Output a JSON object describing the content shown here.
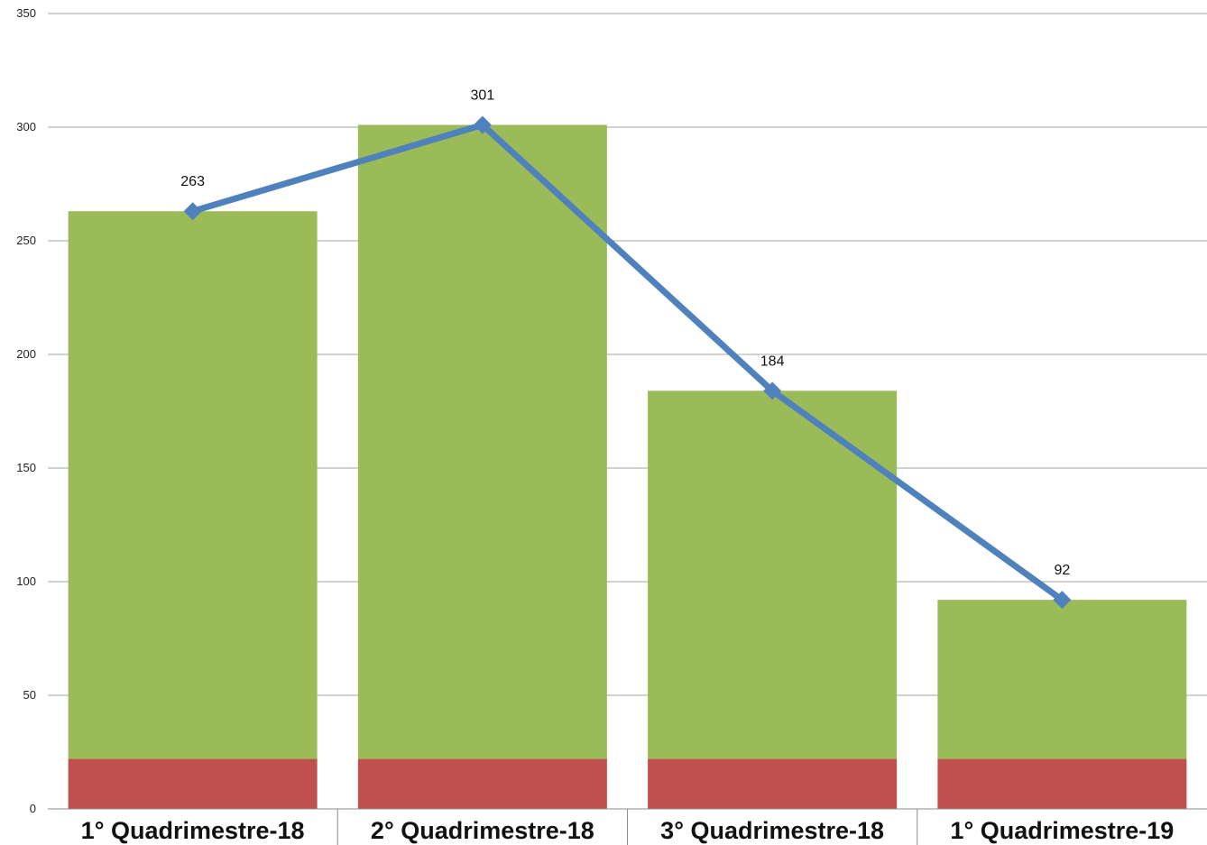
{
  "chart_data": {
    "type": "bar",
    "categories": [
      "1° Quadrimestre-18",
      "2° Quadrimestre-18",
      "3° Quadrimestre-18",
      "1° Quadrimestre-19"
    ],
    "series": [
      {
        "type": "bar",
        "stacked": true,
        "color": "#c0504d",
        "values": [
          22,
          22,
          22,
          22
        ]
      },
      {
        "type": "bar",
        "stacked": true,
        "color": "#9bbb59",
        "values": [
          241,
          279,
          162,
          70
        ]
      },
      {
        "type": "line",
        "color": "#4f81bd",
        "marker": "diamond",
        "values": [
          263,
          301,
          184,
          92
        ],
        "data_labels": [
          "263",
          "301",
          "184",
          "92"
        ]
      }
    ],
    "ylim": [
      0,
      350
    ],
    "yticks": [
      "0",
      "50",
      "100",
      "150",
      "200",
      "250",
      "300",
      "350"
    ],
    "ytick_values": [
      0,
      50,
      100,
      150,
      200,
      250,
      300,
      350
    ],
    "grid": true,
    "legend": "none",
    "title": "",
    "xlabel": "",
    "ylabel": ""
  }
}
